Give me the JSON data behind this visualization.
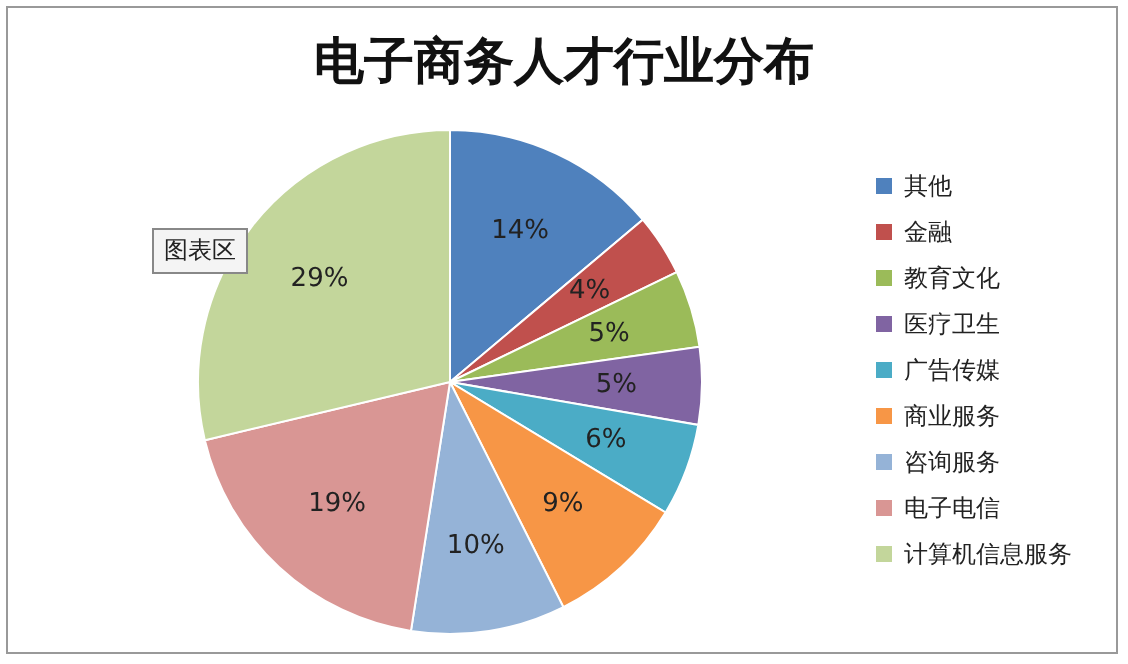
{
  "chart_data": {
    "type": "pie",
    "title": "电子商务人才行业分布",
    "categories": [
      "其他",
      "金融",
      "教育文化",
      "医疗卫生",
      "广告传媒",
      "商业服务",
      "咨询服务",
      "电子电信",
      "计算机信息服务"
    ],
    "values": [
      14,
      4,
      5,
      5,
      6,
      9,
      10,
      19,
      29
    ],
    "value_labels": [
      "14%",
      "4%",
      "5%",
      "5%",
      "6%",
      "9%",
      "10%",
      "19%",
      "29%"
    ],
    "colors": [
      "#4f81bd",
      "#c0504d",
      "#9bbb59",
      "#8064a2",
      "#4bacc6",
      "#f79646",
      "#95b3d7",
      "#d99694",
      "#c3d69b"
    ],
    "legend": "right",
    "annotations": [
      "图表区"
    ]
  }
}
